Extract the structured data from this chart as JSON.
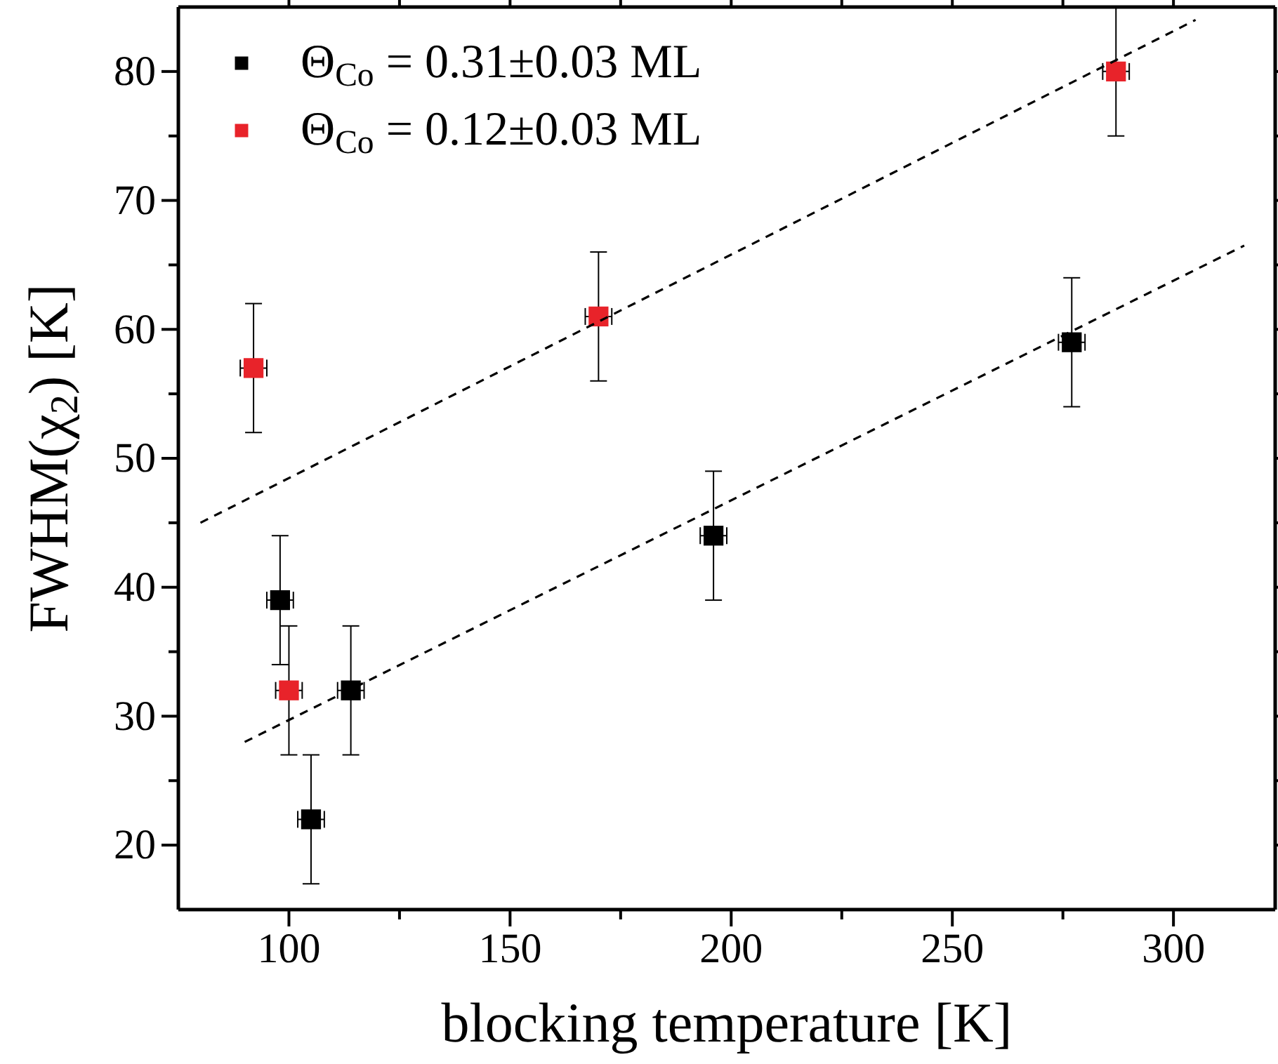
{
  "chart_data": {
    "type": "scatter",
    "xlabel": "blocking temperature [K]",
    "ylabel": "FWHM(χ$_{2}$) [K]",
    "xlim": [
      75,
      323
    ],
    "ylim": [
      15,
      85
    ],
    "xticks": [
      100,
      {
        "value": 125,
        "label": null
      },
      150,
      {
        "value": 175,
        "label": null
      },
      200,
      {
        "value": 225,
        "label": null
      },
      250,
      {
        "value": 275,
        "label": null
      },
      300
    ],
    "yticks": [
      20,
      {
        "value": 25,
        "label": null
      },
      30,
      {
        "value": 35,
        "label": null
      },
      40,
      {
        "value": 45,
        "label": null
      },
      50,
      {
        "value": 55,
        "label": null
      },
      60,
      {
        "value": 65,
        "label": null
      },
      70,
      {
        "value": 75,
        "label": null
      },
      80
    ],
    "grid": false,
    "legend": "top left",
    "marker": "square",
    "series": [
      {
        "name": "Θ$_{Co}$ = 0.31±0.03 ML",
        "color": "#000000",
        "x": [
          98,
          105,
          114,
          196,
          277
        ],
        "values": [
          39,
          22,
          32,
          44,
          59
        ],
        "errors": [
          5,
          5,
          5,
          5,
          5
        ],
        "xerrors": [
          3,
          3,
          3,
          3,
          3
        ]
      },
      {
        "name": "Θ$_{Co}$ = 0.12±0.03 ML",
        "color": "#e8232a",
        "x": [
          92,
          100,
          170,
          287
        ],
        "values": [
          57,
          32,
          61,
          80
        ],
        "errors": [
          5,
          5,
          5,
          5
        ],
        "xerrors": [
          3,
          3,
          3,
          3
        ]
      },
      {
        "type": "line",
        "color": "#000000",
        "x": [
          90,
          316
        ],
        "values": [
          28,
          66.5
        ],
        "line_style": "dashed",
        "marker": "none"
      },
      {
        "type": "line",
        "color": "#000000",
        "x": [
          80,
          305
        ],
        "values": [
          45,
          84
        ],
        "line_style": "dashed",
        "marker": "none"
      }
    ]
  }
}
